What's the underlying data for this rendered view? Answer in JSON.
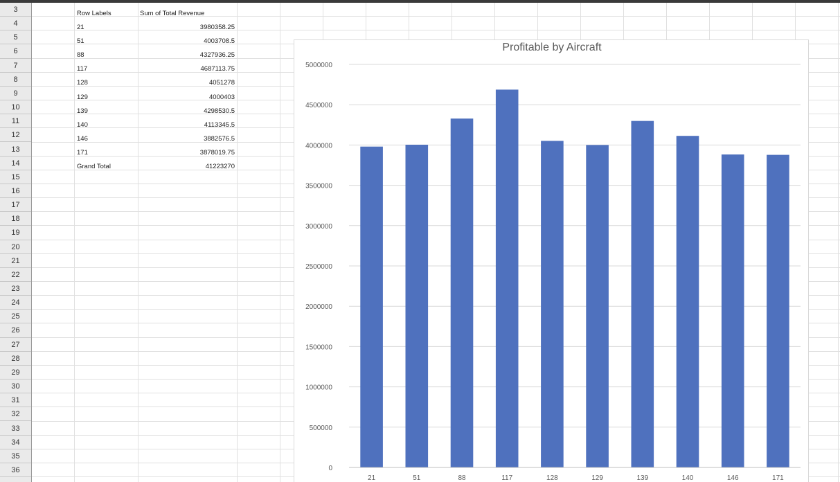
{
  "pivot": {
    "header_row_labels": "Row Labels",
    "header_sum": "Sum of Total Revenue",
    "rows": [
      {
        "label": "21",
        "value": "3980358.25"
      },
      {
        "label": "51",
        "value": "4003708.5"
      },
      {
        "label": "88",
        "value": "4327936.25"
      },
      {
        "label": "117",
        "value": "4687113.75"
      },
      {
        "label": "128",
        "value": "4051278"
      },
      {
        "label": "129",
        "value": "4000403"
      },
      {
        "label": "139",
        "value": "4298530.5"
      },
      {
        "label": "140",
        "value": "4113345.5"
      },
      {
        "label": "146",
        "value": "3882576.5"
      },
      {
        "label": "171",
        "value": "3878019.75"
      }
    ],
    "grand_total_label": "Grand Total",
    "grand_total_value": "41223270"
  },
  "row_numbers": [
    "3",
    "4",
    "5",
    "6",
    "7",
    "8",
    "9",
    "10",
    "11",
    "12",
    "13",
    "14",
    "15",
    "16",
    "17",
    "18",
    "19",
    "20",
    "21",
    "22",
    "23",
    "24",
    "25",
    "26",
    "27",
    "28",
    "29",
    "30",
    "31",
    "32",
    "33",
    "34",
    "35",
    "36"
  ],
  "chart_data": {
    "type": "bar",
    "title": "Profitable by Aircraft",
    "xlabel": "",
    "ylabel": "",
    "categories": [
      "21",
      "51",
      "88",
      "117",
      "128",
      "129",
      "139",
      "140",
      "146",
      "171"
    ],
    "values": [
      3980358.25,
      4003708.5,
      4327936.25,
      4687113.75,
      4051278,
      4000403,
      4298530.5,
      4113345.5,
      3882576.5,
      3878019.75
    ],
    "ylim": [
      0,
      5000000
    ],
    "yticks": [
      "0",
      "500000",
      "1000000",
      "1500000",
      "2000000",
      "2500000",
      "3000000",
      "3500000",
      "4000000",
      "4500000",
      "5000000"
    ],
    "grid": true,
    "legend": "none",
    "bar_color": "#4f71be"
  }
}
